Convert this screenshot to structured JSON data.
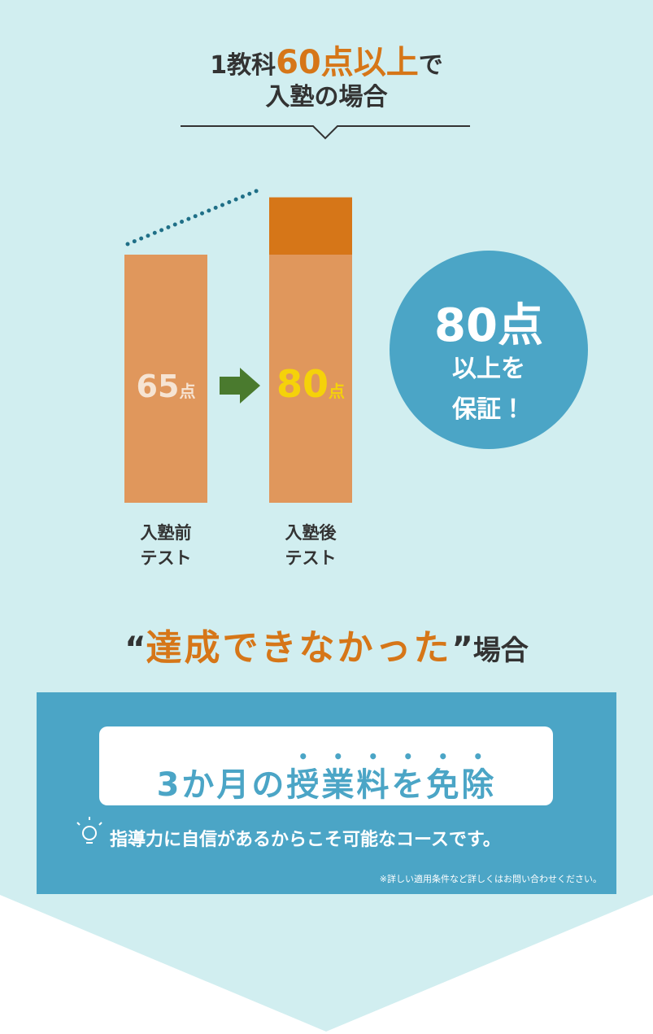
{
  "header": {
    "line1": [
      "1教科",
      "60点以上",
      "で"
    ],
    "line2": "入塾の場合"
  },
  "chart": {
    "bars": [
      {
        "score": 65,
        "unit": "点",
        "label": [
          "入塾前",
          "テスト"
        ]
      },
      {
        "score": 80,
        "unit": "点",
        "label": [
          "入塾後",
          "テスト"
        ]
      }
    ]
  },
  "badge": {
    "lines": [
      "80点",
      "以上を",
      "保証！"
    ]
  },
  "condition": {
    "open_quote": "“",
    "emphasis": "達成できなかった",
    "close_quote": "”",
    "tail": "場合"
  },
  "offer": {
    "title": [
      "3か月の",
      "授業料を免除"
    ],
    "note": "指導力に自信があるからこそ可能なコースです。",
    "disclaimer": "※詳しい適用条件など詳しくはお問い合わせください。"
  }
}
